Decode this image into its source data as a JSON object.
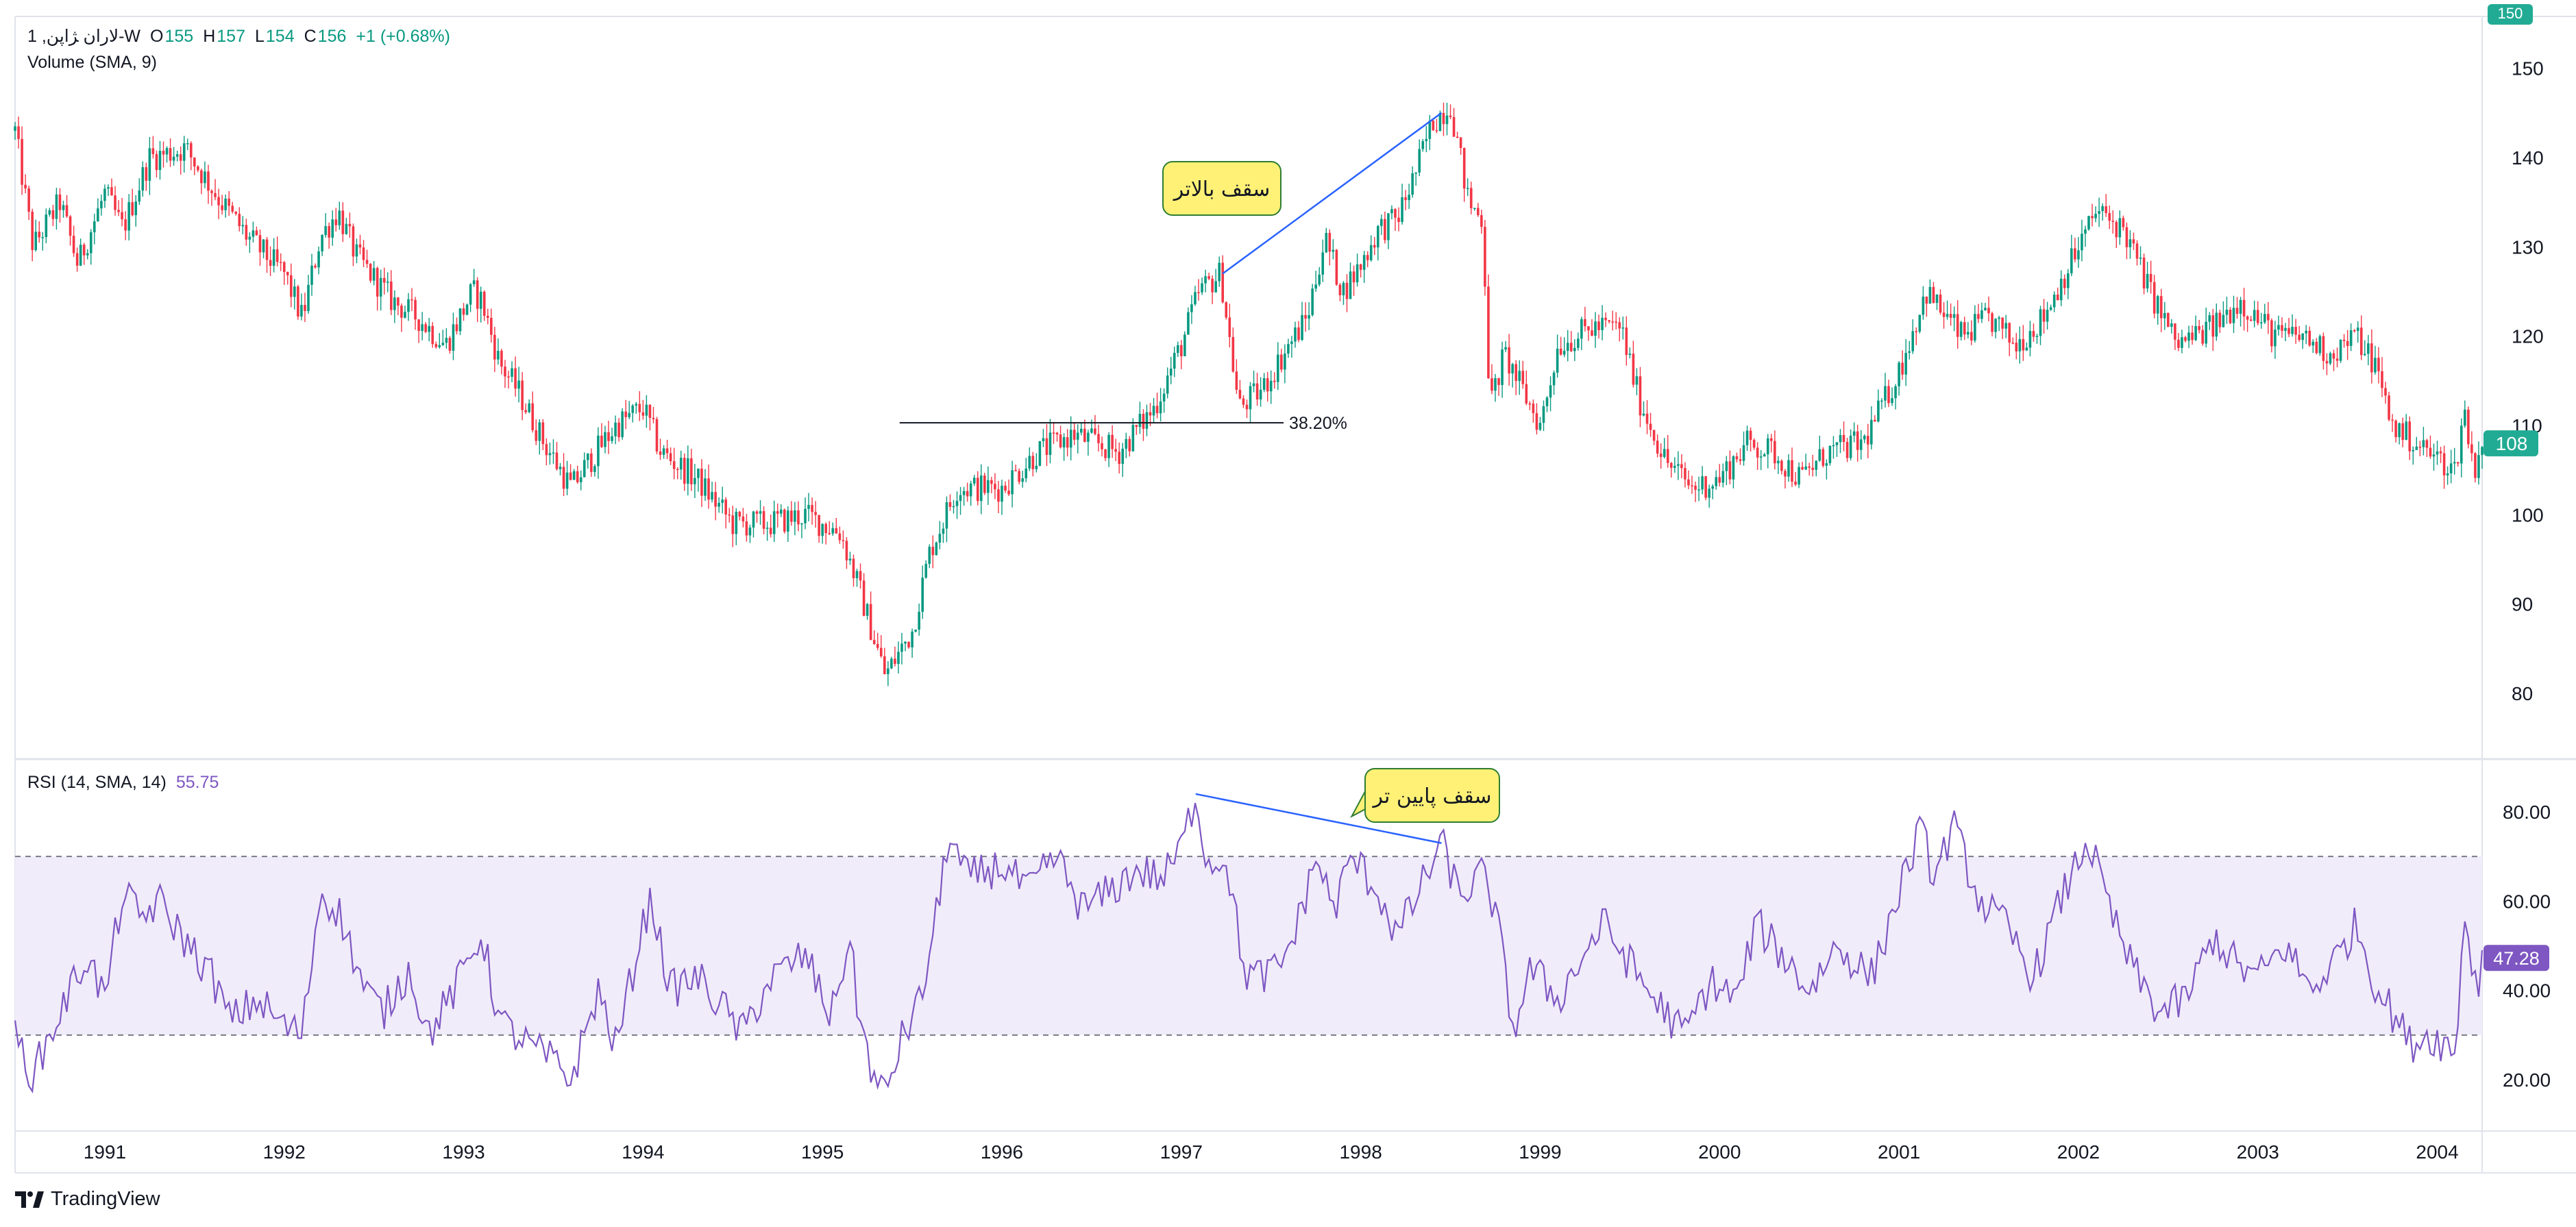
{
  "header": {
    "symbol": "1 ,ﻻﺭاﻥ ﮋاﭘﻦ-W",
    "ohlc": [
      {
        "key": "O",
        "value": "155"
      },
      {
        "key": "H",
        "value": "157"
      },
      {
        "key": "L",
        "value": "154"
      },
      {
        "key": "C",
        "value": "156"
      },
      {
        "key": "",
        "value": "+1 (+0.68%)"
      }
    ],
    "volume_label": "Volume (SMA, 9)"
  },
  "rsi_header": {
    "label": "RSI (14, SMA, 14)",
    "value": "55.75"
  },
  "footer": {
    "brand": "TradingView"
  },
  "colors": {
    "up": "#089981",
    "down": "#f23645",
    "rsi_line": "#7e57c2",
    "rsi_band": "#f1ecfa",
    "annotation_fill": "#fff176",
    "annotation_stroke": "#2e7d32",
    "trend_line": "#2962ff",
    "price_badge": "#22ab94",
    "rsi_badge": "#7e57c2"
  },
  "annotations": {
    "higher_high": "ﺳﻘﻒ ﺑﺎﻻﺗﺮ",
    "lower_high": "ﺳﻘﻒ ﭘﺎﯾﯿﻦ ﺗﺮ",
    "fib_label": "38.20%"
  },
  "chart_data": [
    {
      "type": "candlestick",
      "title": "",
      "x_label": "",
      "y_label": "",
      "x_range": [
        1990.5,
        2004.25
      ],
      "ylim": [
        76,
        155
      ],
      "y_ticks": [
        "80",
        "90",
        "100",
        "110",
        "120",
        "130",
        "140",
        "150"
      ],
      "top_cut_tick": "150",
      "last_price": "108",
      "x_ticks": [
        "1991",
        "1992",
        "1993",
        "1994",
        "1995",
        "1996",
        "1997",
        "1998",
        "1999",
        "2000",
        "2001",
        "2002",
        "2003",
        "2004"
      ],
      "x_tick_values": [
        1991,
        1992,
        1993,
        1994,
        1995,
        1996,
        1997,
        1998,
        1999,
        2000,
        2001,
        2002,
        2003,
        2004
      ],
      "price_path": [
        [
          1990.5,
          143
        ],
        [
          1990.6,
          130
        ],
        [
          1990.75,
          135
        ],
        [
          1990.85,
          128
        ],
        [
          1991.0,
          136
        ],
        [
          1991.1,
          132
        ],
        [
          1991.25,
          140
        ],
        [
          1991.45,
          141
        ],
        [
          1991.65,
          135
        ],
        [
          1991.8,
          131
        ],
        [
          1992.0,
          127
        ],
        [
          1992.1,
          122
        ],
        [
          1992.2,
          131
        ],
        [
          1992.3,
          134
        ],
        [
          1992.4,
          129
        ],
        [
          1992.6,
          124
        ],
        [
          1992.75,
          122
        ],
        [
          1992.9,
          119
        ],
        [
          1993.05,
          125
        ],
        [
          1993.1,
          124
        ],
        [
          1993.2,
          117
        ],
        [
          1993.3,
          114
        ],
        [
          1993.45,
          108
        ],
        [
          1993.6,
          103
        ],
        [
          1993.7,
          106
        ],
        [
          1993.85,
          110
        ],
        [
          1994.0,
          112
        ],
        [
          1994.1,
          107
        ],
        [
          1994.3,
          104
        ],
        [
          1994.5,
          99
        ],
        [
          1994.7,
          99
        ],
        [
          1994.9,
          100
        ],
        [
          1995.1,
          98
        ],
        [
          1995.2,
          92
        ],
        [
          1995.35,
          82
        ],
        [
          1995.5,
          87
        ],
        [
          1995.6,
          96
        ],
        [
          1995.75,
          103
        ],
        [
          1996.0,
          103
        ],
        [
          1996.2,
          107
        ],
        [
          1996.4,
          109
        ],
        [
          1996.65,
          107
        ],
        [
          1996.85,
          112
        ],
        [
          1997.0,
          119
        ],
        [
          1997.1,
          125
        ],
        [
          1997.22,
          127
        ],
        [
          1997.32,
          112
        ],
        [
          1997.45,
          114
        ],
        [
          1997.6,
          119
        ],
        [
          1997.7,
          122
        ],
        [
          1997.8,
          131
        ],
        [
          1997.9,
          125
        ],
        [
          1998.0,
          128
        ],
        [
          1998.1,
          132
        ],
        [
          1998.2,
          133
        ],
        [
          1998.3,
          138
        ],
        [
          1998.4,
          144
        ],
        [
          1998.5,
          146
        ],
        [
          1998.6,
          135
        ],
        [
          1998.68,
          133
        ],
        [
          1998.72,
          112
        ],
        [
          1998.8,
          118
        ],
        [
          1999.0,
          110
        ],
        [
          1999.1,
          119
        ],
        [
          1999.3,
          121
        ],
        [
          1999.45,
          121
        ],
        [
          1999.55,
          113
        ],
        [
          1999.7,
          106
        ],
        [
          1999.85,
          103
        ],
        [
          2000.0,
          104
        ],
        [
          2000.15,
          108
        ],
        [
          2000.3,
          107
        ],
        [
          2000.45,
          104
        ],
        [
          2000.6,
          107
        ],
        [
          2000.8,
          108
        ],
        [
          2001.0,
          116
        ],
        [
          2001.15,
          125
        ],
        [
          2001.35,
          120
        ],
        [
          2001.5,
          122
        ],
        [
          2001.65,
          119
        ],
        [
          2001.8,
          122
        ],
        [
          2001.95,
          128
        ],
        [
          2002.1,
          134
        ],
        [
          2002.25,
          132
        ],
        [
          2002.4,
          125
        ],
        [
          2002.55,
          119
        ],
        [
          2002.75,
          121
        ],
        [
          2002.9,
          124
        ],
        [
          2003.1,
          120
        ],
        [
          2003.25,
          120
        ],
        [
          2003.4,
          118
        ],
        [
          2003.55,
          120
        ],
        [
          2003.65,
          117
        ],
        [
          2003.75,
          110
        ],
        [
          2003.95,
          107
        ],
        [
          2004.1,
          105
        ],
        [
          2004.15,
          112
        ],
        [
          2004.2,
          105
        ],
        [
          2004.25,
          108
        ]
      ],
      "fib_line": {
        "x_start": 1995.43,
        "x_end": 1997.57,
        "value": 110.3,
        "label": "38.20%"
      },
      "trend_line": {
        "x_start": 1997.23,
        "y_start": 127,
        "x_end": 1998.45,
        "y_end": 145
      },
      "annotation_anchor": {
        "x": 1997.55,
        "y": 135
      }
    },
    {
      "type": "line",
      "title": "",
      "series": [
        {
          "name": "RSI (14, SMA, 14)"
        }
      ],
      "ylim": [
        11,
        91
      ],
      "y_ticks": [
        "20.00",
        "40.00",
        "60.00",
        "80.00"
      ],
      "y_tick_values": [
        20,
        40,
        60,
        80
      ],
      "band": [
        30,
        70
      ],
      "last_value": "47.28",
      "rsi_path": [
        [
          1990.5,
          30
        ],
        [
          1990.6,
          21
        ],
        [
          1990.75,
          35
        ],
        [
          1990.9,
          48
        ],
        [
          1991.0,
          38
        ],
        [
          1991.1,
          62
        ],
        [
          1991.2,
          56
        ],
        [
          1991.3,
          60
        ],
        [
          1991.45,
          51
        ],
        [
          1991.6,
          43
        ],
        [
          1991.7,
          33
        ],
        [
          1991.85,
          38
        ],
        [
          1992.0,
          32
        ],
        [
          1992.1,
          30
        ],
        [
          1992.2,
          62
        ],
        [
          1992.3,
          58
        ],
        [
          1992.45,
          40
        ],
        [
          1992.55,
          35
        ],
        [
          1992.7,
          45
        ],
        [
          1992.8,
          30
        ],
        [
          1992.95,
          40
        ],
        [
          1993.1,
          53
        ],
        [
          1993.2,
          33
        ],
        [
          1993.35,
          28
        ],
        [
          1993.5,
          24
        ],
        [
          1993.6,
          20
        ],
        [
          1993.75,
          40
        ],
        [
          1993.85,
          27
        ],
        [
          1994.0,
          55
        ],
        [
          1994.05,
          60
        ],
        [
          1994.15,
          40
        ],
        [
          1994.3,
          43
        ],
        [
          1994.45,
          36
        ],
        [
          1994.55,
          30
        ],
        [
          1994.7,
          42
        ],
        [
          1994.9,
          48
        ],
        [
          1995.05,
          34
        ],
        [
          1995.15,
          52
        ],
        [
          1995.2,
          35
        ],
        [
          1995.3,
          18
        ],
        [
          1995.35,
          17
        ],
        [
          1995.45,
          30
        ],
        [
          1995.55,
          38
        ],
        [
          1995.65,
          60
        ],
        [
          1995.7,
          75
        ],
        [
          1995.8,
          65
        ],
        [
          1996.0,
          68
        ],
        [
          1996.15,
          62
        ],
        [
          1996.3,
          70
        ],
        [
          1996.45,
          58
        ],
        [
          1996.6,
          62
        ],
        [
          1996.75,
          67
        ],
        [
          1996.9,
          65
        ],
        [
          1997.0,
          72
        ],
        [
          1997.08,
          84
        ],
        [
          1997.15,
          68
        ],
        [
          1997.25,
          70
        ],
        [
          1997.35,
          44
        ],
        [
          1997.45,
          43
        ],
        [
          1997.55,
          45
        ],
        [
          1997.65,
          55
        ],
        [
          1997.75,
          70
        ],
        [
          1997.85,
          58
        ],
        [
          1997.95,
          70
        ],
        [
          1998.1,
          62
        ],
        [
          1998.2,
          52
        ],
        [
          1998.3,
          60
        ],
        [
          1998.45,
          73
        ],
        [
          1998.55,
          61
        ],
        [
          1998.68,
          66
        ],
        [
          1998.75,
          58
        ],
        [
          1998.85,
          31
        ],
        [
          1998.95,
          45
        ],
        [
          1999.1,
          38
        ],
        [
          1999.2,
          45
        ],
        [
          1999.35,
          55
        ],
        [
          1999.45,
          49
        ],
        [
          1999.6,
          40
        ],
        [
          1999.7,
          35
        ],
        [
          1999.8,
          30
        ],
        [
          1999.95,
          42
        ],
        [
          2000.1,
          38
        ],
        [
          2000.2,
          55
        ],
        [
          2000.35,
          48
        ],
        [
          2000.5,
          40
        ],
        [
          2000.65,
          50
        ],
        [
          2000.85,
          43
        ],
        [
          2001.0,
          62
        ],
        [
          2001.12,
          76
        ],
        [
          2001.2,
          65
        ],
        [
          2001.3,
          77
        ],
        [
          2001.45,
          60
        ],
        [
          2001.6,
          54
        ],
        [
          2001.75,
          43
        ],
        [
          2001.9,
          60
        ],
        [
          2002.05,
          74
        ],
        [
          2002.2,
          55
        ],
        [
          2002.3,
          45
        ],
        [
          2002.45,
          35
        ],
        [
          2002.6,
          38
        ],
        [
          2002.75,
          52
        ],
        [
          2002.9,
          45
        ],
        [
          2003.0,
          43
        ],
        [
          2003.15,
          50
        ],
        [
          2003.3,
          40
        ],
        [
          2003.45,
          48
        ],
        [
          2003.55,
          55
        ],
        [
          2003.65,
          42
        ],
        [
          2003.75,
          35
        ],
        [
          2003.85,
          28
        ],
        [
          2003.95,
          30
        ],
        [
          2004.05,
          28
        ],
        [
          2004.1,
          25
        ],
        [
          2004.15,
          58
        ],
        [
          2004.22,
          40
        ],
        [
          2004.25,
          47
        ]
      ],
      "trend_line": {
        "x_start": 1997.08,
        "y_start": 84,
        "x_end": 1998.45,
        "y_end": 73
      },
      "annotation_anchor": {
        "x": 1997.95,
        "y": 79
      }
    }
  ]
}
